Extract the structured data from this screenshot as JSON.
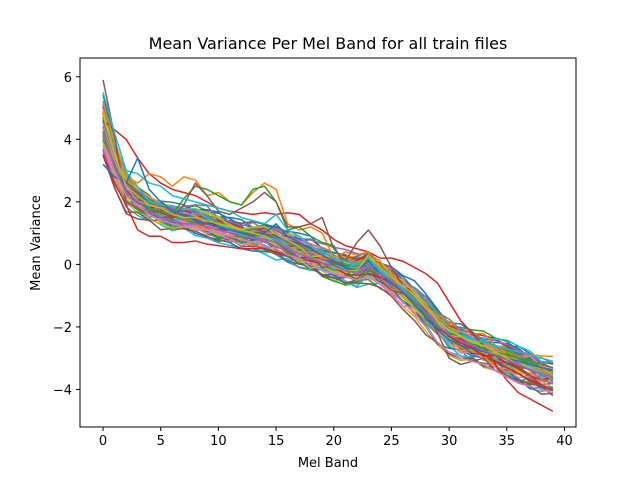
{
  "chart_data": {
    "type": "line",
    "title": "Mean Variance Per Mel Band for all train files",
    "xlabel": "Mel Band",
    "ylabel": "Mean Variance",
    "xlim": [
      -2,
      41
    ],
    "ylim": [
      -5.2,
      6.6
    ],
    "xticks": [
      0,
      5,
      10,
      15,
      20,
      25,
      30,
      35,
      40
    ],
    "yticks": [
      -4,
      -2,
      0,
      2,
      4,
      6
    ],
    "grid": false,
    "legend": "none",
    "colors": [
      "#1f77b4",
      "#ff7f0e",
      "#2ca02c",
      "#d62728",
      "#9467bd",
      "#8c564b",
      "#e377c2",
      "#7f7f7f",
      "#bcbd22",
      "#17becf"
    ],
    "series_shape": {
      "x": [
        0,
        1,
        2,
        3,
        4,
        5,
        6,
        7,
        8,
        9,
        10,
        11,
        12,
        13,
        14,
        15,
        16,
        17,
        18,
        19,
        20,
        21,
        22,
        23,
        24,
        25,
        26,
        27,
        28,
        29,
        30,
        31,
        32,
        33,
        34,
        35,
        36,
        37,
        38,
        39
      ],
      "base": [
        4.5,
        3.3,
        2.4,
        2.1,
        1.8,
        1.6,
        1.5,
        1.45,
        1.4,
        1.35,
        1.2,
        1.1,
        1.0,
        0.95,
        0.9,
        0.8,
        0.6,
        0.45,
        0.3,
        0.15,
        0.0,
        -0.1,
        -0.15,
        0.0,
        -0.2,
        -0.45,
        -0.8,
        -1.1,
        -1.5,
        -1.9,
        -2.2,
        -2.4,
        -2.55,
        -2.7,
        -2.85,
        -3.0,
        -3.15,
        -3.3,
        -3.45,
        -3.55
      ],
      "series_count": 60
    },
    "series": [
      {
        "color": "#d62728",
        "values": [
          4.6,
          4.3,
          4.0,
          3.4,
          2.9,
          2.6,
          2.4,
          2.3,
          2.2,
          2.0,
          1.8,
          1.7,
          1.65,
          1.6,
          1.65,
          1.6,
          1.65,
          1.6,
          1.3,
          1.1,
          0.8,
          0.6,
          0.5,
          0.4,
          0.2,
          0.2,
          0.1,
          -0.1,
          -0.3,
          -0.6,
          -1.2,
          -1.8,
          -2.2,
          -2.6,
          -3.2,
          -3.7,
          -4.1,
          -4.3,
          -4.5,
          -4.7
        ]
      },
      {
        "color": "#d62728",
        "values": [
          3.5,
          2.6,
          1.9,
          1.1,
          0.9,
          0.9,
          0.7,
          0.7,
          0.75,
          0.65,
          0.6,
          0.55,
          0.5,
          0.5,
          0.5,
          0.4,
          0.3,
          0.2,
          0.1,
          0.05,
          -0.1,
          -0.3,
          -0.35,
          -0.3,
          -0.4,
          -0.6,
          -0.9,
          -1.2,
          -1.6,
          -2.0,
          -2.3,
          -2.5,
          -2.7,
          -2.9,
          -3.1,
          -3.3,
          -3.5,
          -3.7,
          -3.9,
          -4.0
        ]
      },
      {
        "color": "#ff7f0e",
        "values": [
          5.2,
          3.9,
          2.8,
          2.6,
          2.9,
          2.8,
          2.5,
          2.8,
          2.7,
          2.2,
          2.3,
          2.0,
          1.9,
          2.3,
          2.6,
          2.4,
          1.3,
          1.1,
          1.2,
          1.0,
          0.2,
          0.4,
          0.3,
          0.4,
          0.0,
          -0.3,
          -0.7,
          -1.0,
          -1.3,
          -1.7,
          -2.0,
          -2.3,
          -2.4,
          -2.5,
          -2.7,
          -2.9,
          -3.1,
          -3.2,
          -3.4,
          -3.6
        ]
      },
      {
        "color": "#2ca02c",
        "values": [
          4.0,
          3.2,
          2.3,
          2.0,
          1.8,
          1.7,
          1.6,
          2.1,
          2.5,
          2.4,
          2.2,
          2.0,
          1.9,
          2.4,
          2.5,
          2.0,
          1.1,
          1.2,
          0.9,
          0.7,
          0.6,
          -0.1,
          -0.6,
          -0.2,
          -0.3,
          -0.5,
          -0.9,
          -1.2,
          -1.6,
          -2.0,
          -2.2,
          -2.3,
          -2.5,
          -2.7,
          -2.8,
          -2.9,
          -3.0,
          -3.1,
          -3.2,
          -3.3
        ]
      },
      {
        "color": "#8c564b",
        "values": [
          5.9,
          4.1,
          2.0,
          1.8,
          1.6,
          1.5,
          1.5,
          1.9,
          2.6,
          2.2,
          1.7,
          1.6,
          1.8,
          2.0,
          2.3,
          2.0,
          1.2,
          1.2,
          1.3,
          1.5,
          0.5,
          0.1,
          0.7,
          1.1,
          0.6,
          -0.1,
          -0.7,
          -1.1,
          -1.5,
          -2.2,
          -3.0,
          -3.2,
          -3.1,
          -3.0,
          -3.4,
          -3.6,
          -3.7,
          -3.8,
          -3.9,
          -4.2
        ]
      },
      {
        "color": "#17becf",
        "values": [
          5.5,
          4.2,
          3.0,
          2.9,
          2.6,
          2.5,
          2.2,
          2.1,
          2.0,
          1.9,
          1.8,
          1.7,
          1.5,
          1.4,
          1.3,
          1.6,
          1.1,
          0.9,
          0.6,
          0.4,
          0.2,
          0.1,
          0.0,
          0.2,
          -0.2,
          -0.5,
          -0.8,
          -1.1,
          -1.4,
          -1.8,
          -2.1,
          -2.3,
          -2.4,
          -2.5,
          -2.6,
          -2.7,
          -2.8,
          -2.9,
          -3.0,
          -3.1
        ]
      },
      {
        "color": "#1f77b4",
        "values": [
          3.2,
          2.8,
          2.6,
          3.4,
          2.4,
          2.0,
          1.7,
          1.6,
          1.4,
          1.3,
          1.2,
          1.1,
          1.0,
          0.9,
          1.0,
          1.3,
          0.9,
          0.7,
          0.5,
          0.3,
          0.1,
          -0.1,
          -0.2,
          0.1,
          -0.3,
          -0.6,
          -0.9,
          -1.3,
          -1.7,
          -2.1,
          -2.4,
          -2.6,
          -2.7,
          -2.8,
          -2.9,
          -3.0,
          -3.1,
          -3.2,
          -3.3,
          -3.4
        ]
      },
      {
        "color": "#e377c2",
        "values": [
          3.8,
          3.0,
          2.2,
          1.9,
          1.6,
          1.4,
          1.3,
          1.2,
          1.2,
          1.1,
          1.0,
          0.9,
          0.8,
          0.7,
          0.6,
          0.5,
          0.3,
          0.2,
          0.0,
          -0.2,
          -0.3,
          -0.4,
          -0.5,
          -0.4,
          -0.6,
          -0.9,
          -1.2,
          -1.6,
          -2.0,
          -2.5,
          -2.8,
          -3.0,
          -3.1,
          -3.2,
          -3.4,
          -3.6,
          -3.8,
          -3.9,
          -4.0,
          -4.1
        ]
      },
      {
        "color": "#bcbd22",
        "values": [
          4.8,
          3.5,
          2.5,
          2.2,
          1.9,
          1.8,
          1.6,
          1.5,
          1.5,
          1.4,
          1.3,
          1.2,
          1.1,
          1.0,
          0.9,
          0.7,
          0.5,
          0.4,
          0.2,
          0.1,
          -0.1,
          -0.2,
          -0.2,
          0.3,
          -0.1,
          -0.4,
          -0.7,
          -1.0,
          -1.4,
          -1.8,
          -2.1,
          -2.3,
          -2.5,
          -2.6,
          -2.8,
          -3.0,
          -3.2,
          -3.3,
          -3.5,
          -3.6
        ]
      },
      {
        "color": "#9467bd",
        "values": [
          4.2,
          3.1,
          2.3,
          2.0,
          1.7,
          1.5,
          1.4,
          1.3,
          1.3,
          1.2,
          1.1,
          1.0,
          0.9,
          0.85,
          0.8,
          0.7,
          0.5,
          0.35,
          0.2,
          0.05,
          -0.05,
          -0.2,
          -0.25,
          -0.1,
          -0.3,
          -0.5,
          -0.85,
          -1.15,
          -1.55,
          -1.95,
          -2.25,
          -2.45,
          -2.6,
          -2.75,
          -2.9,
          -3.05,
          -3.2,
          -3.35,
          -3.5,
          -3.6
        ]
      }
    ]
  }
}
